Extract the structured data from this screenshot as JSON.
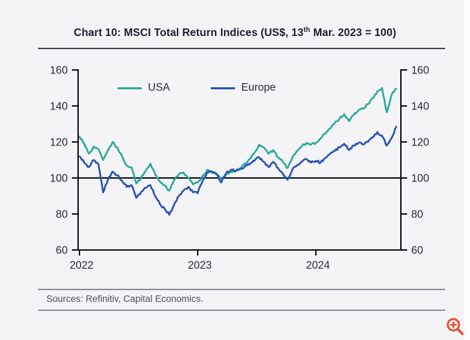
{
  "figure": {
    "title": {
      "prefix": "Chart 10: MSCI Total Return Indices (US$, 13",
      "superscript": "th",
      "suffix": " Mar. 2023 = 100)"
    },
    "source_note": "Sources: Refinitiv, Capital Economics.",
    "zoom_icon": {
      "name": "zoom-in-magnifier",
      "color": "#e8502e"
    }
  },
  "chart_data": {
    "type": "line",
    "title": "Chart 10: MSCI Total Return Indices (US$, 13th Mar. 2023 = 100)",
    "xlabel": "",
    "ylabel": "",
    "grid": false,
    "legend_position": "top-inside",
    "axes": {
      "left": true,
      "right": true,
      "top": false,
      "bottom": true,
      "mirrored_y_labels": true
    },
    "ylim": [
      60,
      160
    ],
    "yticks": [
      60,
      80,
      100,
      120,
      140,
      160
    ],
    "baseline": 100,
    "xrange": [
      2022.0,
      2024.72
    ],
    "xticks": [
      2022,
      2023,
      2024
    ],
    "xtick_labels": [
      "2022",
      "2023",
      "2024"
    ],
    "x": [
      2022.0,
      2022.04,
      2022.08,
      2022.12,
      2022.16,
      2022.2,
      2022.24,
      2022.28,
      2022.32,
      2022.36,
      2022.4,
      2022.44,
      2022.48,
      2022.52,
      2022.56,
      2022.6,
      2022.64,
      2022.68,
      2022.72,
      2022.76,
      2022.8,
      2022.84,
      2022.88,
      2022.92,
      2022.96,
      2023.0,
      2023.04,
      2023.08,
      2023.12,
      2023.16,
      2023.2,
      2023.24,
      2023.28,
      2023.32,
      2023.36,
      2023.4,
      2023.44,
      2023.48,
      2023.52,
      2023.56,
      2023.6,
      2023.64,
      2023.68,
      2023.72,
      2023.76,
      2023.8,
      2023.84,
      2023.88,
      2023.92,
      2023.96,
      2024.0,
      2024.04,
      2024.08,
      2024.12,
      2024.16,
      2024.2,
      2024.24,
      2024.28,
      2024.32,
      2024.36,
      2024.4,
      2024.44,
      2024.48,
      2024.52,
      2024.56,
      2024.6,
      2024.64,
      2024.68
    ],
    "series": [
      {
        "name": "USA",
        "color": "#2ba99c",
        "values": [
          123,
          119,
          113.5,
          117.5,
          116,
          110,
          115,
          120,
          117,
          112,
          107,
          106,
          97,
          100,
          104,
          108,
          102,
          98,
          96,
          93,
          99,
          102,
          103,
          100,
          96.5,
          97.5,
          101,
          104.5,
          103,
          102.5,
          99.5,
          102,
          103.5,
          103.5,
          105.5,
          108,
          110.5,
          114,
          118.5,
          117,
          113.5,
          115.5,
          111.5,
          109,
          105.5,
          111,
          115,
          117.5,
          119.5,
          118.5,
          119.5,
          122,
          124.5,
          127.5,
          130.5,
          133,
          135.5,
          131.5,
          135,
          137.5,
          138.5,
          141,
          144.5,
          148,
          150,
          136.5,
          146,
          149.5
        ]
      },
      {
        "name": "Europe",
        "color": "#2a52b2",
        "values": [
          112,
          108.5,
          106,
          110,
          107.5,
          92,
          99,
          103.5,
          101.5,
          98.5,
          95,
          96,
          89,
          92,
          94.5,
          96,
          90,
          85.5,
          83,
          79.5,
          85,
          90,
          93,
          95,
          92,
          91.5,
          98,
          103,
          103.5,
          102,
          97.5,
          102.5,
          104.5,
          104,
          105,
          106.5,
          107.5,
          109.5,
          111.5,
          109,
          106,
          109,
          105.5,
          102.5,
          99,
          104.5,
          107,
          109,
          110.5,
          108.5,
          109.5,
          108.5,
          111,
          113.5,
          115,
          117,
          119,
          115.5,
          118,
          119.5,
          118.5,
          120,
          122.5,
          125.5,
          123.5,
          118,
          122,
          128.5
        ]
      }
    ]
  }
}
